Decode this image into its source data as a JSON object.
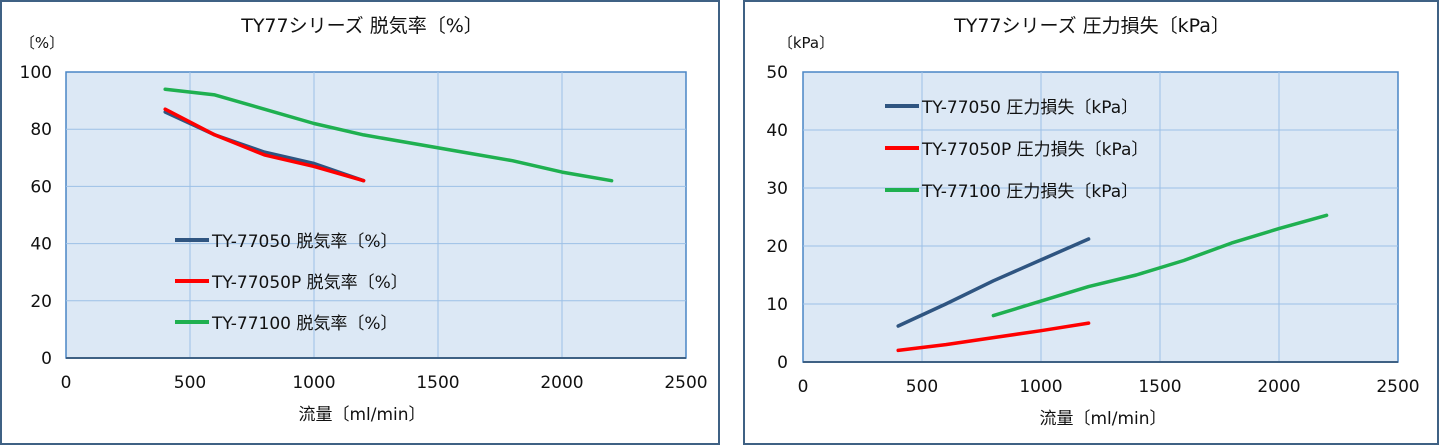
{
  "chart_data": [
    {
      "type": "line",
      "title": "TY77シリーズ 脱気率〔%〕",
      "ylabel": "〔%〕",
      "xlabel": "流量〔ml/min〕",
      "xlim": [
        0,
        2500
      ],
      "ylim": [
        0,
        100
      ],
      "xticks": [
        0,
        500,
        1000,
        1500,
        2000,
        2500
      ],
      "yticks": [
        0,
        20,
        40,
        60,
        80,
        100
      ],
      "grid": true,
      "legend_position": "center-left",
      "series": [
        {
          "name": "TY-77050 脱気率〔%〕",
          "color": "#2f5581",
          "x": [
            400,
            600,
            800,
            1000,
            1200
          ],
          "y": [
            86,
            78,
            72,
            68,
            62
          ]
        },
        {
          "name": "TY-77050P 脱気率〔%〕",
          "color": "#ff0000",
          "x": [
            400,
            600,
            800,
            1000,
            1200
          ],
          "y": [
            87,
            78,
            71,
            67,
            62
          ]
        },
        {
          "name": "TY-77100 脱気率〔%〕",
          "color": "#1fb050",
          "x": [
            400,
            600,
            800,
            1000,
            1200,
            1400,
            1600,
            1800,
            2000,
            2200
          ],
          "y": [
            94,
            92,
            87,
            82,
            78,
            75,
            72,
            69,
            65,
            62
          ]
        }
      ]
    },
    {
      "type": "line",
      "title": "TY77シリーズ 圧力損失〔kPa〕",
      "ylabel": "〔kPa〕",
      "xlabel": "流量〔ml/min〕",
      "xlim": [
        0,
        2500
      ],
      "ylim": [
        0,
        50
      ],
      "xticks": [
        0,
        500,
        1000,
        1500,
        2000,
        2500
      ],
      "yticks": [
        0,
        10,
        20,
        30,
        40,
        50
      ],
      "grid": true,
      "legend_position": "top-left",
      "series": [
        {
          "name": "TY-77050 圧力損失〔kPa〕",
          "color": "#2f5581",
          "x": [
            400,
            600,
            800,
            1000,
            1200
          ],
          "y": [
            6.2,
            10,
            14,
            17.6,
            21.2
          ]
        },
        {
          "name": "TY-77050P 圧力損失〔kPa〕",
          "color": "#ff0000",
          "x": [
            400,
            600,
            800,
            1000,
            1200
          ],
          "y": [
            2,
            3,
            4.2,
            5.4,
            6.7
          ]
        },
        {
          "name": "TY-77100 圧力損失〔kPa〕",
          "color": "#1fb050",
          "x": [
            800,
            1000,
            1200,
            1400,
            1600,
            1800,
            2000,
            2200
          ],
          "y": [
            8,
            10.5,
            13,
            15,
            17.5,
            20.5,
            23,
            25.3
          ]
        }
      ]
    }
  ]
}
